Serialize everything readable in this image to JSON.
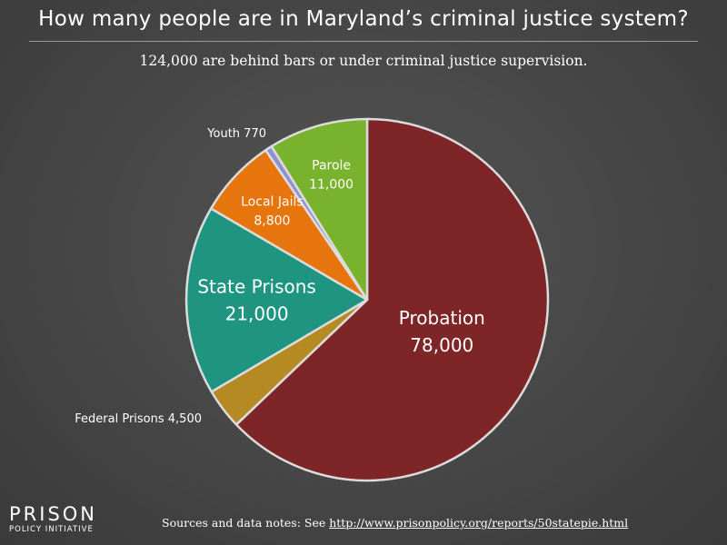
{
  "chart_data": {
    "type": "pie",
    "title": "How many people are in Maryland’s criminal justice system?",
    "subtitle": "124,000 are behind bars or under criminal justice supervision.",
    "slices": [
      {
        "name": "Probation",
        "value": 78000,
        "value_label": "78,000",
        "color": "#7e2627"
      },
      {
        "name": "Federal Prisons",
        "value": 4500,
        "value_label": "4,500",
        "color": "#b58a23"
      },
      {
        "name": "State Prisons",
        "value": 21000,
        "value_label": "21,000",
        "color": "#1f9481"
      },
      {
        "name": "Local Jails",
        "value": 8800,
        "value_label": "8,800",
        "color": "#e6750d"
      },
      {
        "name": "Youth",
        "value": 770,
        "value_label": "770",
        "color": "#8f90d2"
      },
      {
        "name": "Parole",
        "value": 11000,
        "value_label": "11,000",
        "color": "#79b22c"
      }
    ],
    "start_angle_deg": 0,
    "direction": "clockwise",
    "legend": "none"
  },
  "logo": {
    "top": "PRISON",
    "bottom": "POLICY INITIATIVE"
  },
  "sources": {
    "prefix": "Sources and data notes: See ",
    "link": "http://www.prisonpolicy.org/reports/50statepie.html"
  },
  "colors": {
    "background": "#474747",
    "edge": "#dcdcdc",
    "text": "#ffffff"
  }
}
